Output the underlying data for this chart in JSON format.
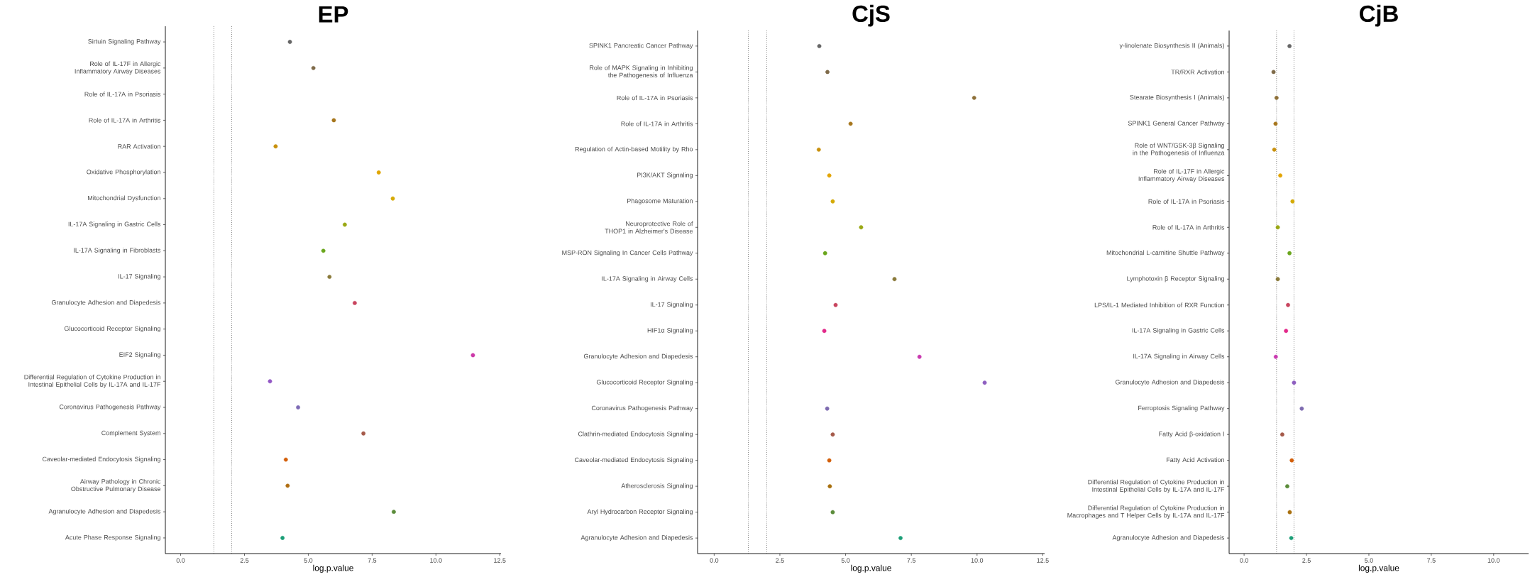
{
  "chart_data": [
    {
      "type": "scatter",
      "orientation": "horizontal",
      "title": "EP",
      "xlabel": "log.p.value",
      "marker": "circle",
      "categories": [
        "Sirtuin Signaling Pathway",
        "Role of IL-17F in Allergic Inflammatory Airway Diseases",
        "Role of IL-17A in Psoriasis",
        "Role of IL-17A in Arthritis",
        "RAR Activation",
        "Oxidative Phosphorylation",
        "Mitochondrial Dysfunction",
        "IL-17A Signaling in Gastric Cells",
        "IL-17A Signaling in Fibroblasts",
        "IL-17 Signaling",
        "Granulocyte Adhesion and Diapedesis",
        "Glucocorticoid Receptor Signaling",
        "EIF2 Signaling",
        "Differential Regulation of Cytokine Production in Intestinal Epithelial Cells by IL-17A and IL-17F",
        "Coronavirus Pathogenesis Pathway",
        "Complement System",
        "Caveolar-mediated Endocytosis Signaling",
        "Airway Pathology in Chronic Obstructive Pulmonary Disease",
        "Agranulocyte Adhesion and Diapedesis",
        "Acute Phase Response Signaling"
      ],
      "values": [
        4.28,
        5.2,
        null,
        6.0,
        3.72,
        7.76,
        8.31,
        6.43,
        5.59,
        5.83,
        6.82,
        null,
        11.45,
        3.5,
        4.6,
        7.16,
        4.12,
        4.19,
        8.35,
        3.99
      ],
      "colors": [
        "#666666",
        "#7f6b4a",
        "#94712f",
        "#a6761d",
        "#c8900c",
        "#e0a503",
        "#d6aa06",
        "#9aa814",
        "#6aa61d",
        "#8a7a3a",
        "#c8445e",
        "#e2298a",
        "#cc39a8",
        "#9459c6",
        "#7e6bb5",
        "#a55a4a",
        "#d35f0a",
        "#b06e12",
        "#5b8c3a",
        "#1b9e77"
      ],
      "xlim": [
        -0.6,
        12.55
      ],
      "xticks": [
        {
          "value": 0,
          "label": "0.0"
        },
        {
          "value": 2.5,
          "label": "2.5"
        },
        {
          "value": 5,
          "label": "5.0"
        },
        {
          "value": 7.5,
          "label": "7.5"
        },
        {
          "value": 10,
          "label": "10.0"
        },
        {
          "value": 12.5,
          "label": "12.5"
        }
      ],
      "ref_lines": [
        {
          "axis": "x",
          "value": 1.3,
          "color": "#444444",
          "line_style": "dotted"
        },
        {
          "axis": "x",
          "value": 2.0,
          "color": "#444444",
          "line_style": "dotted"
        }
      ]
    },
    {
      "type": "scatter",
      "orientation": "horizontal",
      "title": "CjS",
      "xlabel": "log.p.value",
      "marker": "circle",
      "categories": [
        "SPINK1 Pancreatic Cancer Pathway",
        "Role of MAPK Signaling in Inhibiting the Pathogenesis of Influenza",
        "Role of IL-17A in Psoriasis",
        "Role of IL-17A in Arthritis",
        "Regulation of Actin-based Motility by Rho",
        "PI3K/AKT Signaling",
        "Phagosome Maturation",
        "Neuroprotective Role of THOP1 in Alzheimer's Disease",
        "MSP-RON Signaling In Cancer Cells Pathway",
        "IL-17A Signaling in Airway Cells",
        "IL-17 Signaling",
        "HIF1α Signaling",
        "Granulocyte Adhesion and Diapedesis",
        "Glucocorticoid Receptor Signaling",
        "Coronavirus Pathogenesis Pathway",
        "Clathrin-mediated Endocytosis Signaling",
        "Caveolar-mediated Endocytosis Signaling",
        "Atherosclerosis Signaling",
        "Aryl Hydrocarbon Receptor Signaling",
        "Agranulocyte Adhesion and Diapedesis"
      ],
      "values": [
        4.0,
        4.31,
        9.89,
        5.19,
        3.98,
        4.38,
        4.51,
        5.59,
        4.22,
        6.86,
        4.62,
        4.19,
        7.81,
        10.29,
        4.3,
        4.51,
        4.38,
        4.4,
        4.51,
        7.09
      ],
      "colors": [
        "#666666",
        "#7f6b4a",
        "#8e7038",
        "#a6761d",
        "#c8900c",
        "#e3a505",
        "#d4aa06",
        "#9aa814",
        "#6aa61d",
        "#8a7a3a",
        "#c8445e",
        "#e2298a",
        "#c93ab0",
        "#8e5fc0",
        "#7e6bb0",
        "#a55a4a",
        "#d35f0a",
        "#a8700f",
        "#5b8c3a",
        "#1b9e77"
      ],
      "xlim": [
        -0.63,
        12.57
      ],
      "xticks": [
        {
          "value": 0,
          "label": "0.0"
        },
        {
          "value": 2.5,
          "label": "2.5"
        },
        {
          "value": 5,
          "label": "5.0"
        },
        {
          "value": 7.5,
          "label": "7.5"
        },
        {
          "value": 10,
          "label": "10.0"
        },
        {
          "value": 12.5,
          "label": "12.5"
        }
      ],
      "ref_lines": [
        {
          "axis": "x",
          "value": 1.3,
          "color": "#444444",
          "line_style": "dotted"
        },
        {
          "axis": "x",
          "value": 2.0,
          "color": "#444444",
          "line_style": "dotted"
        }
      ]
    },
    {
      "type": "scatter",
      "orientation": "horizontal",
      "title": "CjB",
      "xlabel": "log.p.value",
      "marker": "circle",
      "categories": [
        "γ-linolenate Biosynthesis II (Animals)",
        "TR/RXR Activation",
        "Stearate Biosynthesis I (Animals)",
        "SPINK1 General Cancer Pathway",
        "Role of WNT/GSK-3β Signaling in the Pathogenesis of Influenza",
        "Role of IL-17F in Allergic Inflammatory Airway Diseases",
        "Role of IL-17A in Psoriasis",
        "Role of IL-17A in Arthritis",
        "Mitochondrial L-carnitine Shuttle Pathway",
        "Lymphotoxin β Receptor Signaling",
        "LPS/IL-1 Mediated Inhibition of RXR Function",
        "IL-17A Signaling in Gastric Cells",
        "IL-17A Signaling in Airway Cells",
        "Granulocyte Adhesion and Diapedesis",
        "Ferroptosis Signaling Pathway",
        "Fatty Acid β-oxidation I",
        "Fatty Acid Activation",
        "Differential Regulation of Cytokine Production in Intestinal Epithelial Cells by IL-17A and IL-17F",
        "Differential Regulation of Cytokine Production in Macrophages and T Helper Cells by IL-17A and IL-17F",
        "Agranulocyte Adhesion and Diapedesis"
      ],
      "values": [
        1.82,
        1.18,
        1.3,
        1.26,
        1.21,
        1.45,
        1.94,
        1.35,
        1.82,
        1.35,
        1.76,
        1.68,
        1.27,
        2.0,
        2.31,
        1.53,
        1.91,
        1.73,
        1.83,
        1.89
      ],
      "colors": [
        "#666666",
        "#7f6b4a",
        "#8e7038",
        "#a6761d",
        "#c8900c",
        "#e3a505",
        "#d4aa06",
        "#9aa814",
        "#6aa61d",
        "#8a7a3a",
        "#c8445e",
        "#e2298a",
        "#c93ab0",
        "#8e5fc0",
        "#7e6bb0",
        "#a55a4a",
        "#d35f0a",
        "#5b8c3a",
        "#a8700f",
        "#1b9e77"
      ],
      "xlim": [
        -0.6,
        11.4
      ],
      "xticks": [
        {
          "value": 0,
          "label": "0.0"
        },
        {
          "value": 2.5,
          "label": "2.5"
        },
        {
          "value": 5,
          "label": "5.0"
        },
        {
          "value": 7.5,
          "label": "7.5"
        },
        {
          "value": 10,
          "label": "10.0"
        }
      ],
      "ref_lines": [
        {
          "axis": "x",
          "value": 1.3,
          "color": "#444444",
          "line_style": "dotted"
        },
        {
          "axis": "x",
          "value": 2.0,
          "color": "#444444",
          "line_style": "dotted"
        }
      ]
    }
  ]
}
